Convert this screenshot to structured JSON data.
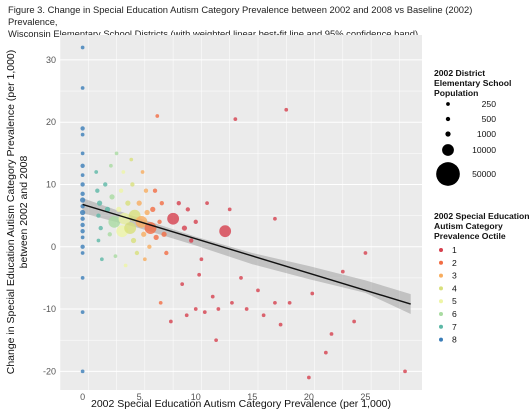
{
  "caption": {
    "line1": "Figure 3. Change in Special Education Autism Category Prevalence between 2002 and 2008 vs Baseline (2002) Prevalence,",
    "line2": "Wisconsin Elementary School Districts (with weighted linear best-fit line and 95% confidence band)"
  },
  "chart_data": {
    "type": "scatter",
    "title": "Figure 3. Change in Special Education Autism Category Prevalence between 2002 and 2008 vs Baseline (2002) Prevalence, Wisconsin Elementary School Districts (with weighted linear best-fit line and 95% confidence band)",
    "xlabel": "2002 Special Education Autism Category Prevalence (per 1,000)",
    "ylabel_line1": "Change in Special Education Autism Category Prevalence (per 1,000)",
    "ylabel_line2": "between 2002 and 2008",
    "xlim": [
      -2,
      30
    ],
    "ylim": [
      -23,
      34
    ],
    "x_ticks": [
      0,
      5,
      10,
      15,
      20,
      25
    ],
    "y_ticks": [
      -20,
      -10,
      0,
      10,
      20,
      30
    ],
    "grid": true,
    "fit_line": {
      "x": [
        0,
        29
      ],
      "y": [
        6.8,
        -9.2
      ]
    },
    "confidence_band": {
      "x": [
        0,
        5,
        10,
        15,
        20,
        25,
        29
      ],
      "lower": [
        5.4,
        3.0,
        0.2,
        -2.8,
        -5.2,
        -7.4,
        -10.8
      ],
      "upper": [
        7.8,
        4.6,
        1.6,
        -1.0,
        -3.1,
        -5.4,
        -7.6
      ]
    },
    "size_legend": {
      "title_lines": [
        "2002 District",
        "Elementary School",
        "Population"
      ],
      "values": [
        250,
        500,
        1000,
        10000,
        50000
      ]
    },
    "color_legend": {
      "title_lines": [
        "2002 Special Education",
        "Autism Category",
        "Prevalence Octile"
      ],
      "octiles": [
        {
          "label": "1",
          "color": "#d6404e"
        },
        {
          "label": "2",
          "color": "#f26d43"
        },
        {
          "label": "3",
          "color": "#f8ad5f"
        },
        {
          "label": "4",
          "color": "#d8e07c"
        },
        {
          "label": "5",
          "color": "#eef5a6"
        },
        {
          "label": "6",
          "color": "#a9dba1"
        },
        {
          "label": "7",
          "color": "#5cb8a6"
        },
        {
          "label": "8",
          "color": "#3a7db8"
        }
      ]
    },
    "points": [
      {
        "x": 0,
        "y": 32,
        "o": 8,
        "s": 250
      },
      {
        "x": 0,
        "y": 25.5,
        "o": 8,
        "s": 250
      },
      {
        "x": 0,
        "y": 19,
        "o": 8,
        "s": 500
      },
      {
        "x": 0,
        "y": 18,
        "o": 8,
        "s": 250
      },
      {
        "x": 0,
        "y": 15,
        "o": 8,
        "s": 250
      },
      {
        "x": 0,
        "y": 13,
        "o": 8,
        "s": 500
      },
      {
        "x": 0,
        "y": 11.5,
        "o": 8,
        "s": 250
      },
      {
        "x": 0,
        "y": 10,
        "o": 8,
        "s": 500
      },
      {
        "x": 0,
        "y": 8.5,
        "o": 8,
        "s": 500
      },
      {
        "x": 0,
        "y": 7.5,
        "o": 8,
        "s": 1000
      },
      {
        "x": 0,
        "y": 6.5,
        "o": 8,
        "s": 500
      },
      {
        "x": 0,
        "y": 5.5,
        "o": 8,
        "s": 1000
      },
      {
        "x": 0,
        "y": 4.5,
        "o": 8,
        "s": 500
      },
      {
        "x": 0,
        "y": 3.5,
        "o": 8,
        "s": 500
      },
      {
        "x": 0,
        "y": 2.5,
        "o": 8,
        "s": 500
      },
      {
        "x": 0,
        "y": 1.5,
        "o": 8,
        "s": 250
      },
      {
        "x": 0,
        "y": 0,
        "o": 8,
        "s": 500
      },
      {
        "x": 0,
        "y": -1,
        "o": 8,
        "s": 250
      },
      {
        "x": 0,
        "y": -5,
        "o": 8,
        "s": 250
      },
      {
        "x": 0,
        "y": -10.5,
        "o": 8,
        "s": 250
      },
      {
        "x": 0,
        "y": -20,
        "o": 8,
        "s": 250
      },
      {
        "x": 1.2,
        "y": 12,
        "o": 7,
        "s": 250
      },
      {
        "x": 1.3,
        "y": 9,
        "o": 7,
        "s": 500
      },
      {
        "x": 1.5,
        "y": 7,
        "o": 7,
        "s": 1000
      },
      {
        "x": 1.4,
        "y": 5,
        "o": 7,
        "s": 500
      },
      {
        "x": 1.6,
        "y": 3,
        "o": 7,
        "s": 500
      },
      {
        "x": 1.4,
        "y": 1,
        "o": 7,
        "s": 250
      },
      {
        "x": 1.7,
        "y": -2,
        "o": 7,
        "s": 250
      },
      {
        "x": 2.0,
        "y": 10,
        "o": 7,
        "s": 500
      },
      {
        "x": 2.2,
        "y": 6,
        "o": 7,
        "s": 1000
      },
      {
        "x": 2.5,
        "y": 13,
        "o": 6,
        "s": 250
      },
      {
        "x": 2.6,
        "y": 8,
        "o": 6,
        "s": 1000
      },
      {
        "x": 2.8,
        "y": 4,
        "o": 6,
        "s": 10000
      },
      {
        "x": 2.4,
        "y": 2,
        "o": 6,
        "s": 500
      },
      {
        "x": 2.9,
        "y": -1.5,
        "o": 6,
        "s": 250
      },
      {
        "x": 3.0,
        "y": 15,
        "o": 6,
        "s": 250
      },
      {
        "x": 3.2,
        "y": 6,
        "o": 5,
        "s": 1000
      },
      {
        "x": 3.4,
        "y": 9,
        "o": 5,
        "s": 500
      },
      {
        "x": 3.5,
        "y": 2.5,
        "o": 5,
        "s": 10000
      },
      {
        "x": 3.7,
        "y": 4.5,
        "o": 5,
        "s": 10000
      },
      {
        "x": 3.6,
        "y": 12,
        "o": 5,
        "s": 250
      },
      {
        "x": 3.8,
        "y": -3,
        "o": 5,
        "s": 250
      },
      {
        "x": 4.0,
        "y": 7,
        "o": 4,
        "s": 1000
      },
      {
        "x": 4.2,
        "y": 3,
        "o": 4,
        "s": 10000
      },
      {
        "x": 4.4,
        "y": 10,
        "o": 4,
        "s": 500
      },
      {
        "x": 4.5,
        "y": 1,
        "o": 4,
        "s": 1000
      },
      {
        "x": 4.6,
        "y": 5,
        "o": 4,
        "s": 10000
      },
      {
        "x": 4.3,
        "y": 14,
        "o": 4,
        "s": 250
      },
      {
        "x": 4.8,
        "y": -1,
        "o": 4,
        "s": 500
      },
      {
        "x": 5.0,
        "y": 7,
        "o": 3,
        "s": 1000
      },
      {
        "x": 5.2,
        "y": 4,
        "o": 3,
        "s": 10000
      },
      {
        "x": 5.4,
        "y": 2,
        "o": 3,
        "s": 1000
      },
      {
        "x": 5.6,
        "y": 9,
        "o": 3,
        "s": 500
      },
      {
        "x": 5.7,
        "y": 5.5,
        "o": 3,
        "s": 1000
      },
      {
        "x": 5.9,
        "y": 0,
        "o": 3,
        "s": 500
      },
      {
        "x": 5.3,
        "y": 12,
        "o": 3,
        "s": 250
      },
      {
        "x": 5.5,
        "y": -2,
        "o": 3,
        "s": 250
      },
      {
        "x": 6.0,
        "y": 3,
        "o": 2,
        "s": 10000
      },
      {
        "x": 6.2,
        "y": 6,
        "o": 2,
        "s": 1000
      },
      {
        "x": 6.4,
        "y": 9,
        "o": 2,
        "s": 500
      },
      {
        "x": 6.5,
        "y": 1.5,
        "o": 2,
        "s": 1000
      },
      {
        "x": 6.8,
        "y": 4,
        "o": 2,
        "s": 500
      },
      {
        "x": 7.0,
        "y": 7,
        "o": 2,
        "s": 500
      },
      {
        "x": 7.2,
        "y": 2,
        "o": 2,
        "s": 1000
      },
      {
        "x": 6.6,
        "y": 21,
        "o": 2,
        "s": 250
      },
      {
        "x": 7.4,
        "y": -1,
        "o": 2,
        "s": 500
      },
      {
        "x": 8.0,
        "y": 4.5,
        "o": 1,
        "s": 10000
      },
      {
        "x": 8.5,
        "y": 7,
        "o": 1,
        "s": 500
      },
      {
        "x": 9.0,
        "y": 3,
        "o": 1,
        "s": 1000
      },
      {
        "x": 9.3,
        "y": 6,
        "o": 1,
        "s": 500
      },
      {
        "x": 9.6,
        "y": 1,
        "o": 1,
        "s": 500
      },
      {
        "x": 10.0,
        "y": 4,
        "o": 1,
        "s": 500
      },
      {
        "x": 10.5,
        "y": -2,
        "o": 1,
        "s": 250
      },
      {
        "x": 10.0,
        "y": -10,
        "o": 1,
        "s": 250
      },
      {
        "x": 10.8,
        "y": -10.5,
        "o": 1,
        "s": 250
      },
      {
        "x": 11.0,
        "y": 7,
        "o": 1,
        "s": 250
      },
      {
        "x": 11.5,
        "y": -8,
        "o": 1,
        "s": 250
      },
      {
        "x": 12.0,
        "y": -10,
        "o": 1,
        "s": 250
      },
      {
        "x": 12.6,
        "y": 2.5,
        "o": 1,
        "s": 10000
      },
      {
        "x": 13.0,
        "y": 6,
        "o": 1,
        "s": 250
      },
      {
        "x": 13.5,
        "y": 20.5,
        "o": 1,
        "s": 250
      },
      {
        "x": 13.2,
        "y": -9,
        "o": 1,
        "s": 250
      },
      {
        "x": 14.0,
        "y": -5,
        "o": 1,
        "s": 250
      },
      {
        "x": 14.5,
        "y": -10,
        "o": 1,
        "s": 250
      },
      {
        "x": 15.5,
        "y": -7,
        "o": 1,
        "s": 250
      },
      {
        "x": 16.0,
        "y": -11,
        "o": 1,
        "s": 250
      },
      {
        "x": 17.0,
        "y": -9,
        "o": 1,
        "s": 250
      },
      {
        "x": 17.5,
        "y": -12.5,
        "o": 1,
        "s": 250
      },
      {
        "x": 17.0,
        "y": 4.5,
        "o": 1,
        "s": 250
      },
      {
        "x": 18.0,
        "y": 22,
        "o": 1,
        "s": 250
      },
      {
        "x": 18.3,
        "y": -9,
        "o": 1,
        "s": 250
      },
      {
        "x": 20.0,
        "y": -21,
        "o": 1,
        "s": 250
      },
      {
        "x": 20.3,
        "y": -7.5,
        "o": 1,
        "s": 250
      },
      {
        "x": 21.5,
        "y": -17,
        "o": 1,
        "s": 250
      },
      {
        "x": 22.0,
        "y": -14,
        "o": 1,
        "s": 250
      },
      {
        "x": 23.0,
        "y": -4,
        "o": 1,
        "s": 250
      },
      {
        "x": 24.0,
        "y": -12,
        "o": 1,
        "s": 250
      },
      {
        "x": 25.0,
        "y": -1,
        "o": 1,
        "s": 250
      },
      {
        "x": 28.5,
        "y": -20,
        "o": 1,
        "s": 250
      },
      {
        "x": 10.3,
        "y": -4.5,
        "o": 1,
        "s": 250
      },
      {
        "x": 8.8,
        "y": -6,
        "o": 1,
        "s": 250
      },
      {
        "x": 7.8,
        "y": -12,
        "o": 1,
        "s": 250
      },
      {
        "x": 6.9,
        "y": -9,
        "o": 2,
        "s": 250
      },
      {
        "x": 9.2,
        "y": -11,
        "o": 1,
        "s": 250
      },
      {
        "x": 11.8,
        "y": -15,
        "o": 1,
        "s": 250
      }
    ]
  }
}
